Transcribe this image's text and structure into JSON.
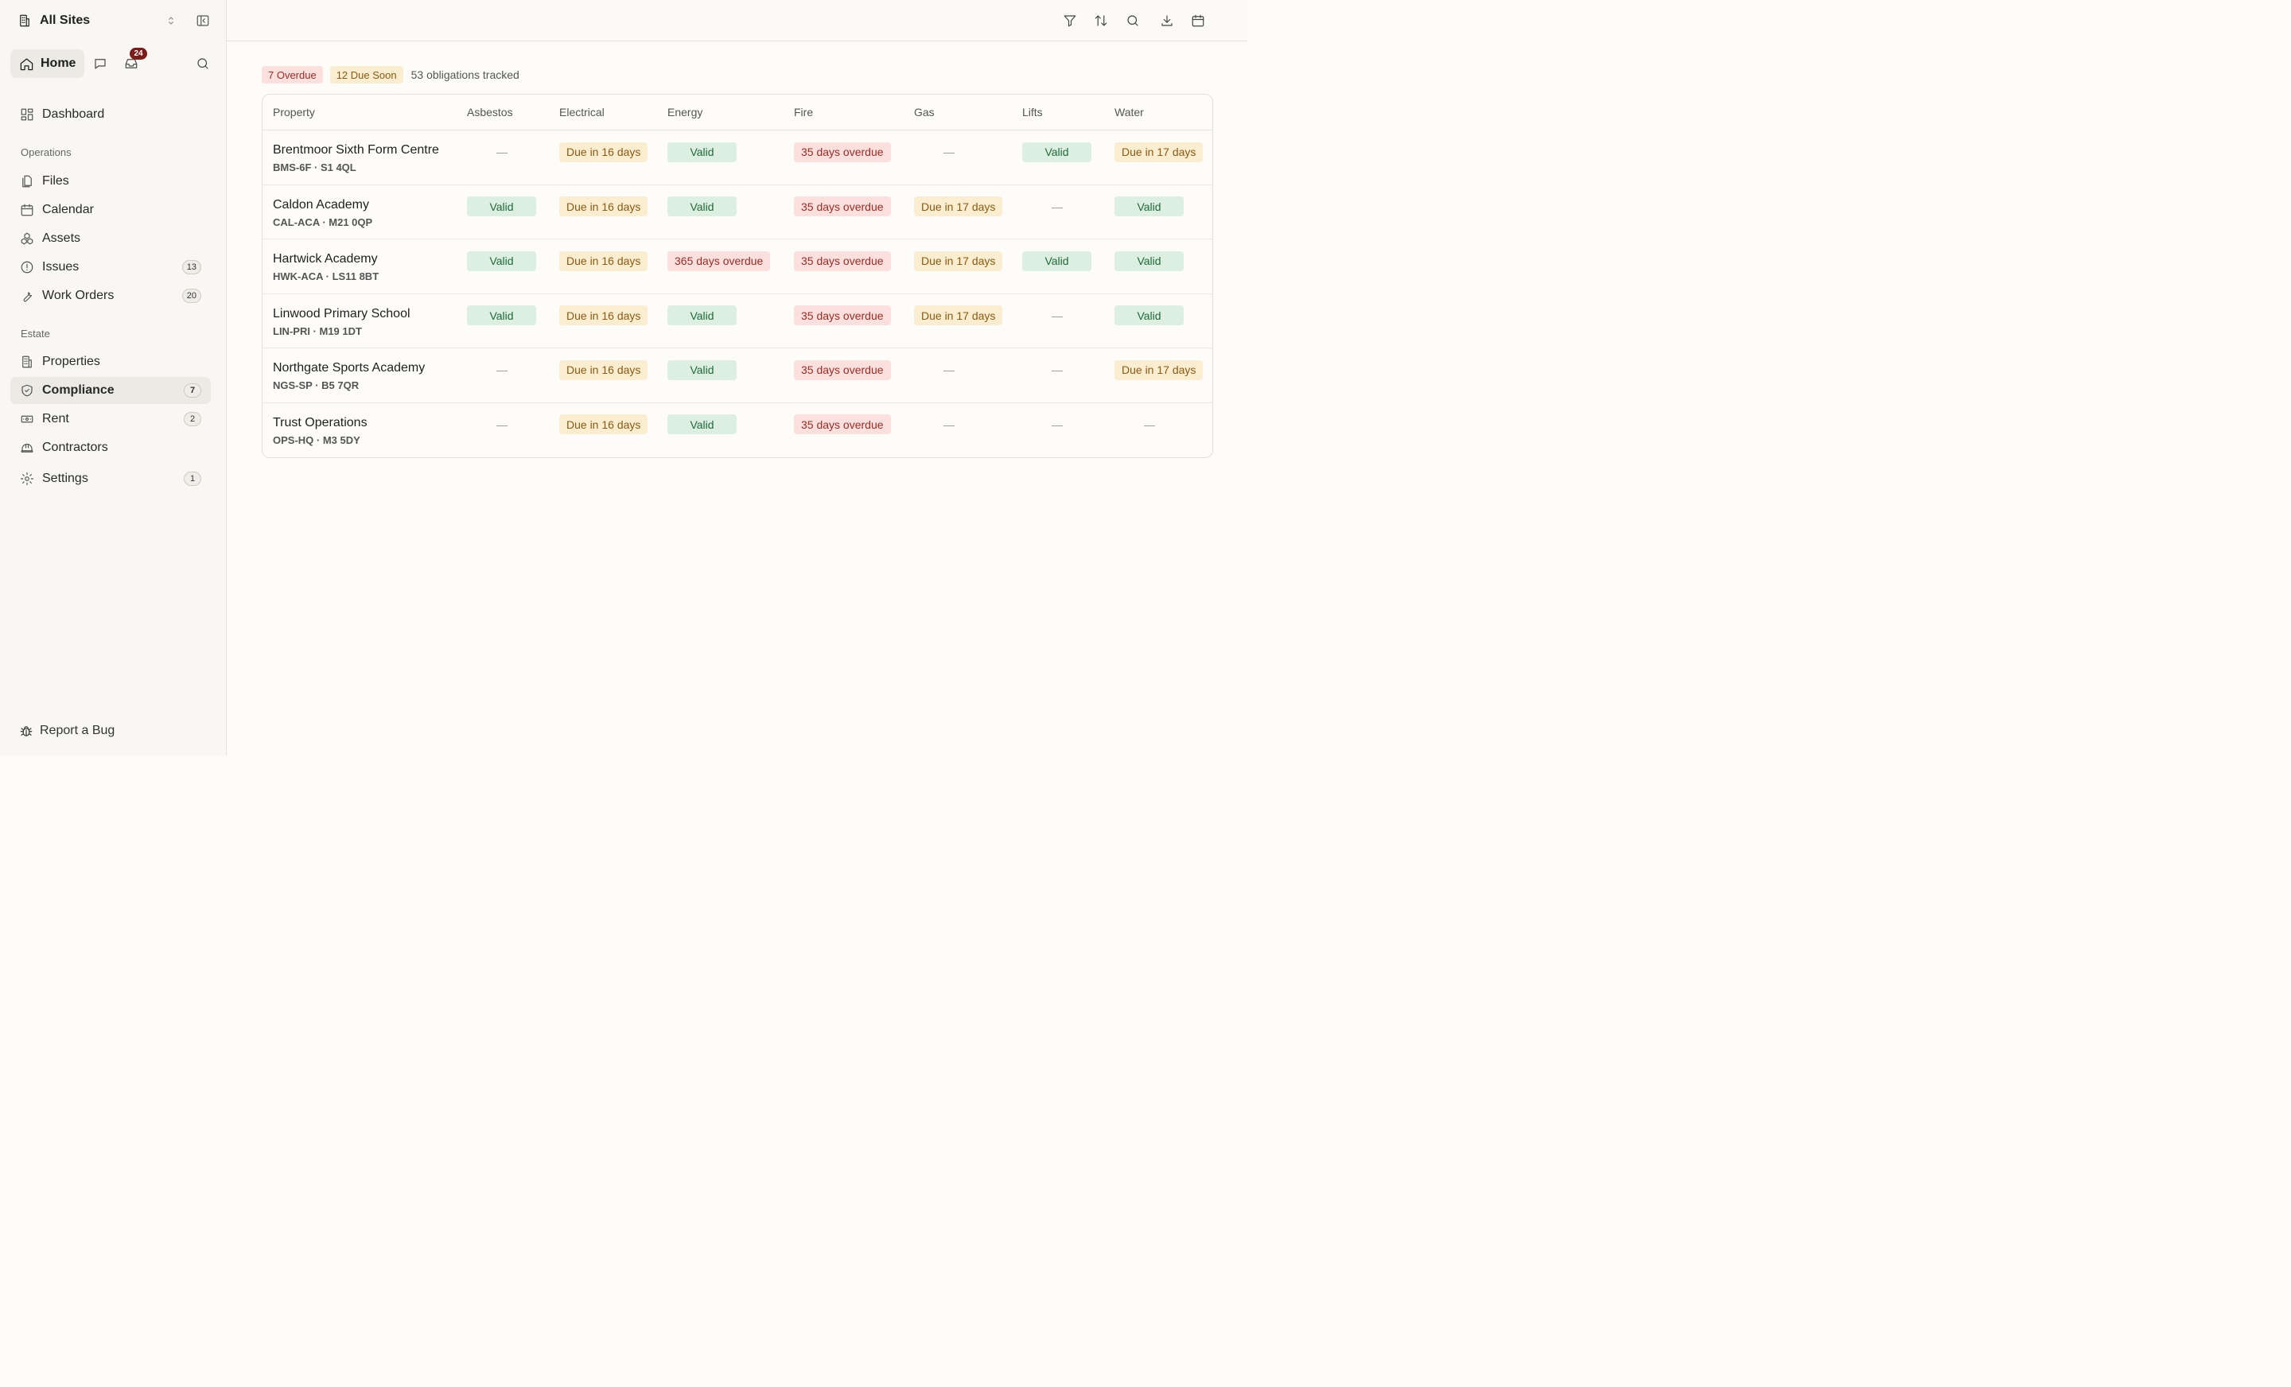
{
  "sidebar": {
    "site_name": "All Sites",
    "home_label": "Home",
    "inbox_count": "24",
    "dashboard": "Dashboard",
    "section_operations": "Operations",
    "files": "Files",
    "calendar": "Calendar",
    "assets": "Assets",
    "issues": "Issues",
    "issues_count": "13",
    "work_orders": "Work Orders",
    "work_orders_count": "20",
    "section_estate": "Estate",
    "properties": "Properties",
    "compliance": "Compliance",
    "compliance_count": "7",
    "rent": "Rent",
    "rent_count": "2",
    "contractors": "Contractors",
    "settings": "Settings",
    "settings_count": "1",
    "report_bug": "Report a Bug"
  },
  "summary": {
    "overdue": "7 Overdue",
    "due_soon": "12 Due Soon",
    "tracked": "53 obligations tracked"
  },
  "table": {
    "headers": [
      "Property",
      "Asbestos",
      "Electrical",
      "Energy",
      "Fire",
      "Gas",
      "Lifts",
      "Water"
    ],
    "rows": [
      {
        "name": "Brentmoor Sixth Form Centre",
        "code": "BMS-6F · S1 4QL",
        "cells": [
          {
            "status": "none",
            "text": "—"
          },
          {
            "status": "due",
            "text": "Due in 16 days"
          },
          {
            "status": "valid",
            "text": "Valid"
          },
          {
            "status": "over",
            "text": "35 days overdue"
          },
          {
            "status": "none",
            "text": "—"
          },
          {
            "status": "valid",
            "text": "Valid"
          },
          {
            "status": "due",
            "text": "Due in 17 days"
          }
        ]
      },
      {
        "name": "Caldon Academy",
        "code": "CAL-ACA · M21 0QP",
        "cells": [
          {
            "status": "valid",
            "text": "Valid"
          },
          {
            "status": "due",
            "text": "Due in 16 days"
          },
          {
            "status": "valid",
            "text": "Valid"
          },
          {
            "status": "over",
            "text": "35 days overdue"
          },
          {
            "status": "due",
            "text": "Due in 17 days"
          },
          {
            "status": "none",
            "text": "—"
          },
          {
            "status": "valid",
            "text": "Valid"
          }
        ]
      },
      {
        "name": "Hartwick Academy",
        "code": "HWK-ACA · LS11 8BT",
        "cells": [
          {
            "status": "valid",
            "text": "Valid"
          },
          {
            "status": "due",
            "text": "Due in 16 days"
          },
          {
            "status": "over",
            "text": "365 days overdue"
          },
          {
            "status": "over",
            "text": "35 days overdue"
          },
          {
            "status": "due",
            "text": "Due in 17 days"
          },
          {
            "status": "valid",
            "text": "Valid"
          },
          {
            "status": "valid",
            "text": "Valid"
          }
        ]
      },
      {
        "name": "Linwood Primary School",
        "code": "LIN-PRI · M19 1DT",
        "cells": [
          {
            "status": "valid",
            "text": "Valid"
          },
          {
            "status": "due",
            "text": "Due in 16 days"
          },
          {
            "status": "valid",
            "text": "Valid"
          },
          {
            "status": "over",
            "text": "35 days overdue"
          },
          {
            "status": "due",
            "text": "Due in 17 days"
          },
          {
            "status": "none",
            "text": "—"
          },
          {
            "status": "valid",
            "text": "Valid"
          }
        ]
      },
      {
        "name": "Northgate Sports Academy",
        "code": "NGS-SP · B5 7QR",
        "cells": [
          {
            "status": "none",
            "text": "—"
          },
          {
            "status": "due",
            "text": "Due in 16 days"
          },
          {
            "status": "valid",
            "text": "Valid"
          },
          {
            "status": "over",
            "text": "35 days overdue"
          },
          {
            "status": "none",
            "text": "—"
          },
          {
            "status": "none",
            "text": "—"
          },
          {
            "status": "due",
            "text": "Due in 17 days"
          }
        ]
      },
      {
        "name": "Trust Operations",
        "code": "OPS-HQ · M3 5DY",
        "cells": [
          {
            "status": "none",
            "text": "—"
          },
          {
            "status": "due",
            "text": "Due in 16 days"
          },
          {
            "status": "valid",
            "text": "Valid"
          },
          {
            "status": "over",
            "text": "35 days overdue"
          },
          {
            "status": "none",
            "text": "—"
          },
          {
            "status": "none",
            "text": "—"
          },
          {
            "status": "none",
            "text": "—"
          }
        ]
      }
    ]
  }
}
